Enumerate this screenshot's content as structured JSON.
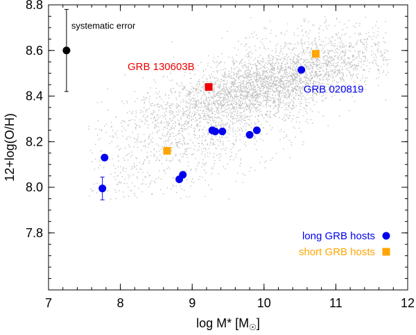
{
  "chart_data": {
    "type": "scatter",
    "title": "",
    "xlabel": "log M* [M",
    "xlabel_sub": "☉",
    "xlabel_close": "]",
    "ylabel": "12+log(O/H)",
    "xlim": [
      7,
      12
    ],
    "ylim": [
      7.55,
      8.8
    ],
    "x_ticks": [
      7,
      8,
      9,
      10,
      11,
      12
    ],
    "x_tick_labels": [
      "7",
      "8",
      "9",
      "10",
      "11",
      "12"
    ],
    "y_ticks": [
      7.8,
      8.0,
      8.2,
      8.4,
      8.6,
      8.8
    ],
    "y_tick_labels": [
      "7.8",
      "8.0",
      "8.2",
      "8.4",
      "8.6",
      "8.8"
    ],
    "background_distribution": {
      "name": "galaxy sample",
      "color": "#c0c0c0",
      "ellipses": [
        {
          "cx": 10.0,
          "cy": 8.45,
          "sx": 0.95,
          "sy": 0.06,
          "tilt": 0.08,
          "n": 1800
        },
        {
          "cx": 10.1,
          "cy": 8.45,
          "sx": 0.7,
          "sy": 0.1,
          "tilt": 0.12,
          "n": 1200
        },
        {
          "cx": 9.3,
          "cy": 8.3,
          "sx": 1.0,
          "sy": 0.13,
          "tilt": 0.16,
          "n": 1400
        }
      ]
    },
    "series": [
      {
        "name": "long GRB hosts",
        "marker": "circle",
        "color": "#0000ee",
        "points": [
          {
            "x": 7.78,
            "y": 8.13
          },
          {
            "x": 7.75,
            "y": 7.995,
            "yerr": 0.05
          },
          {
            "x": 8.82,
            "y": 8.035
          },
          {
            "x": 8.87,
            "y": 8.055
          },
          {
            "x": 9.28,
            "y": 8.25
          },
          {
            "x": 9.32,
            "y": 8.245
          },
          {
            "x": 9.42,
            "y": 8.245
          },
          {
            "x": 9.8,
            "y": 8.23
          },
          {
            "x": 9.9,
            "y": 8.25
          },
          {
            "x": 10.52,
            "y": 8.515
          }
        ]
      },
      {
        "name": "short GRB hosts",
        "marker": "square",
        "color": "#ffa500",
        "points": [
          {
            "x": 8.65,
            "y": 8.16
          },
          {
            "x": 10.72,
            "y": 8.585
          }
        ]
      },
      {
        "name": "GRB 130603B",
        "marker": "square",
        "color": "#ee0000",
        "points": [
          {
            "x": 9.23,
            "y": 8.44
          }
        ]
      }
    ],
    "systematic_error": {
      "label": "systematic error",
      "x": 7.25,
      "y": 8.6,
      "yerr": 0.18,
      "color": "#000000"
    },
    "annotations": [
      {
        "text": "GRB 130603B",
        "x": 8.1,
        "y": 8.53,
        "color": "#ee0000"
      },
      {
        "text": "GRB 020819",
        "x": 10.55,
        "y": 8.43,
        "color": "#0000ee"
      }
    ],
    "legend": {
      "placement": "bottom-right",
      "entries": [
        {
          "label": "long GRB hosts",
          "marker": "circle",
          "color": "#0000ee"
        },
        {
          "label": "short GRB hosts",
          "marker": "square",
          "color": "#ffa500"
        }
      ]
    }
  }
}
